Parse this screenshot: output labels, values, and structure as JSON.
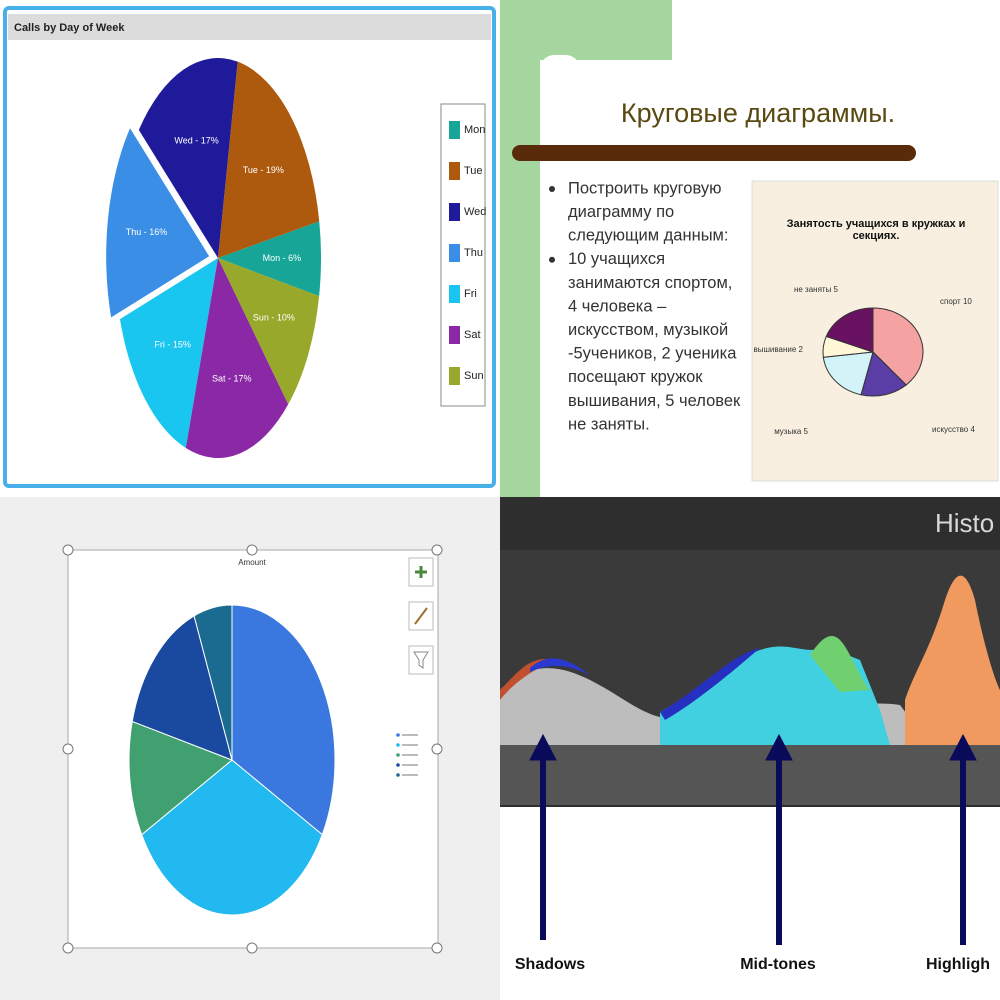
{
  "chart_data": [
    {
      "type": "pie",
      "title": "Calls by Day of Week",
      "categories": [
        "Mon",
        "Tue",
        "Wed",
        "Thu",
        "Fri",
        "Sat",
        "Sun"
      ],
      "values": [
        6,
        19,
        17,
        16,
        15,
        17,
        10
      ],
      "value_labels": [
        "Mon - 6%",
        "Tue - 19%",
        "Wed - 17%",
        "Thu - 16%",
        "Fri - 15%",
        "Sat - 17%",
        "Sun - 10%"
      ],
      "colors": [
        "#17a597",
        "#ad5a0f",
        "#1f1a9a",
        "#3a8ee6",
        "#19c6f0",
        "#8b28a6",
        "#98a82a"
      ],
      "legend": "right"
    },
    {
      "type": "pie",
      "title": "Занятость учащихся в кружках и секциях.",
      "categories": [
        "спорт",
        "искусство",
        "музыка",
        "вышивание",
        "не заняты"
      ],
      "values": [
        10,
        4,
        5,
        2,
        5
      ],
      "value_labels": [
        "спорт 10",
        "искусство 4",
        "музыка 5",
        "вышивание 2",
        "не заняты 5"
      ],
      "colors": [
        "#f4a2a2",
        "#5a3ea6",
        "#d2f4f8",
        "#fff7d6",
        "#6a1262"
      ]
    },
    {
      "type": "pie",
      "title": "Amount",
      "categories": [
        null,
        null,
        null,
        null,
        null
      ],
      "values": [
        33,
        34,
        12,
        15,
        6
      ],
      "colors": [
        "#3a78e0",
        "#22b8f0",
        "#41a070",
        "#1a4aa0",
        "#1b6a90"
      ],
      "legend": "right"
    }
  ],
  "slide": {
    "title": "Круговые диаграммы.",
    "bullets": [
      [
        "Построить круговую",
        "диаграмму по",
        "следующим данным:"
      ],
      [
        " 10 учащихся",
        "занимаются спортом,",
        "4 человека –",
        "искусством, музыкой",
        "-5учеников, 2 ученика",
        "посещают кружок",
        "вышивания, 5 человек",
        "не заняты."
      ]
    ]
  },
  "histogram_panel": {
    "title": "Histo",
    "labels": [
      "Shadows",
      "Mid-tones",
      "Highligh"
    ]
  }
}
